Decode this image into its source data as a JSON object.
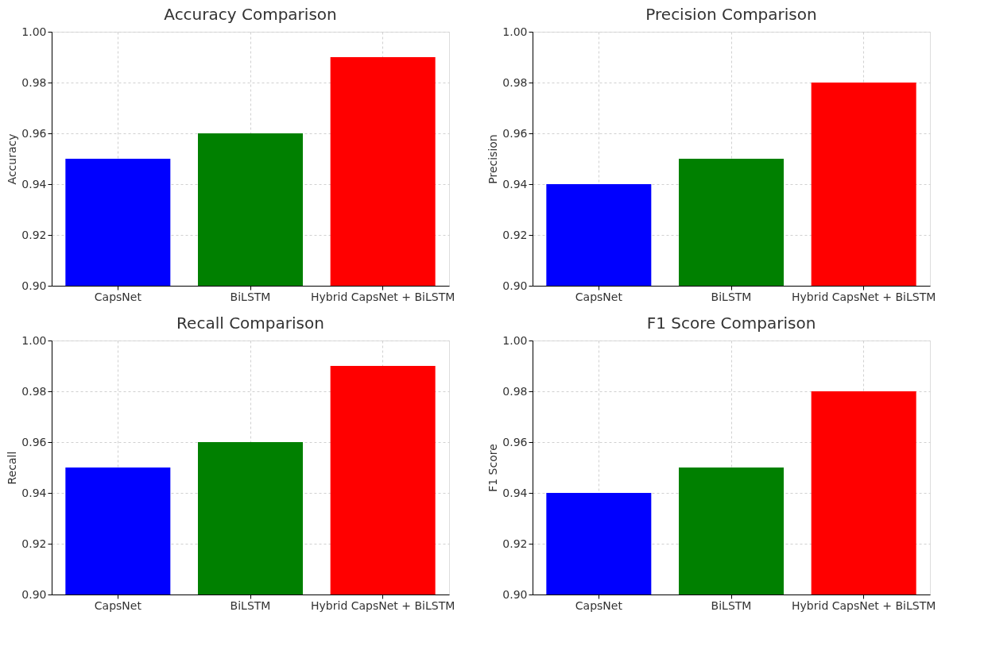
{
  "chart_data": [
    {
      "type": "bar",
      "title": "Accuracy Comparison",
      "ylabel": "Accuracy",
      "categories": [
        "CapsNet",
        "BiLSTM",
        "Hybrid CapsNet + BiLSTM"
      ],
      "values": [
        0.95,
        0.96,
        0.99
      ],
      "colors": [
        "#0000ff",
        "#008000",
        "#ff0000"
      ],
      "ylim": [
        0.9,
        1.0
      ],
      "yticks": [
        {
          "value": 0.9,
          "label": "0.90"
        },
        {
          "value": 0.92,
          "label": "0.92"
        },
        {
          "value": 0.94,
          "label": "0.94"
        },
        {
          "value": 0.96,
          "label": "0.96"
        },
        {
          "value": 0.98,
          "label": "0.98"
        },
        {
          "value": 1.0,
          "label": "1.00"
        }
      ],
      "grid": true
    },
    {
      "type": "bar",
      "title": "Precision Comparison",
      "ylabel": "Precision",
      "categories": [
        "CapsNet",
        "BiLSTM",
        "Hybrid CapsNet + BiLSTM"
      ],
      "values": [
        0.94,
        0.95,
        0.98
      ],
      "colors": [
        "#0000ff",
        "#008000",
        "#ff0000"
      ],
      "ylim": [
        0.9,
        1.0
      ],
      "yticks": [
        {
          "value": 0.9,
          "label": "0.90"
        },
        {
          "value": 0.92,
          "label": "0.92"
        },
        {
          "value": 0.94,
          "label": "0.94"
        },
        {
          "value": 0.96,
          "label": "0.96"
        },
        {
          "value": 0.98,
          "label": "0.98"
        },
        {
          "value": 1.0,
          "label": "1.00"
        }
      ],
      "grid": true
    },
    {
      "type": "bar",
      "title": "Recall Comparison",
      "ylabel": "Recall",
      "categories": [
        "CapsNet",
        "BiLSTM",
        "Hybrid CapsNet + BiLSTM"
      ],
      "values": [
        0.95,
        0.96,
        0.99
      ],
      "colors": [
        "#0000ff",
        "#008000",
        "#ff0000"
      ],
      "ylim": [
        0.9,
        1.0
      ],
      "yticks": [
        {
          "value": 0.9,
          "label": "0.90"
        },
        {
          "value": 0.92,
          "label": "0.92"
        },
        {
          "value": 0.94,
          "label": "0.94"
        },
        {
          "value": 0.96,
          "label": "0.96"
        },
        {
          "value": 0.98,
          "label": "0.98"
        },
        {
          "value": 1.0,
          "label": "1.00"
        }
      ],
      "grid": true
    },
    {
      "type": "bar",
      "title": "F1 Score Comparison",
      "ylabel": "F1 Score",
      "categories": [
        "CapsNet",
        "BiLSTM",
        "Hybrid CapsNet + BiLSTM"
      ],
      "values": [
        0.94,
        0.95,
        0.98
      ],
      "colors": [
        "#0000ff",
        "#008000",
        "#ff0000"
      ],
      "ylim": [
        0.9,
        1.0
      ],
      "yticks": [
        {
          "value": 0.9,
          "label": "0.90"
        },
        {
          "value": 0.92,
          "label": "0.92"
        },
        {
          "value": 0.94,
          "label": "0.94"
        },
        {
          "value": 0.96,
          "label": "0.96"
        },
        {
          "value": 0.98,
          "label": "0.98"
        },
        {
          "value": 1.0,
          "label": "1.00"
        }
      ],
      "grid": true
    }
  ]
}
